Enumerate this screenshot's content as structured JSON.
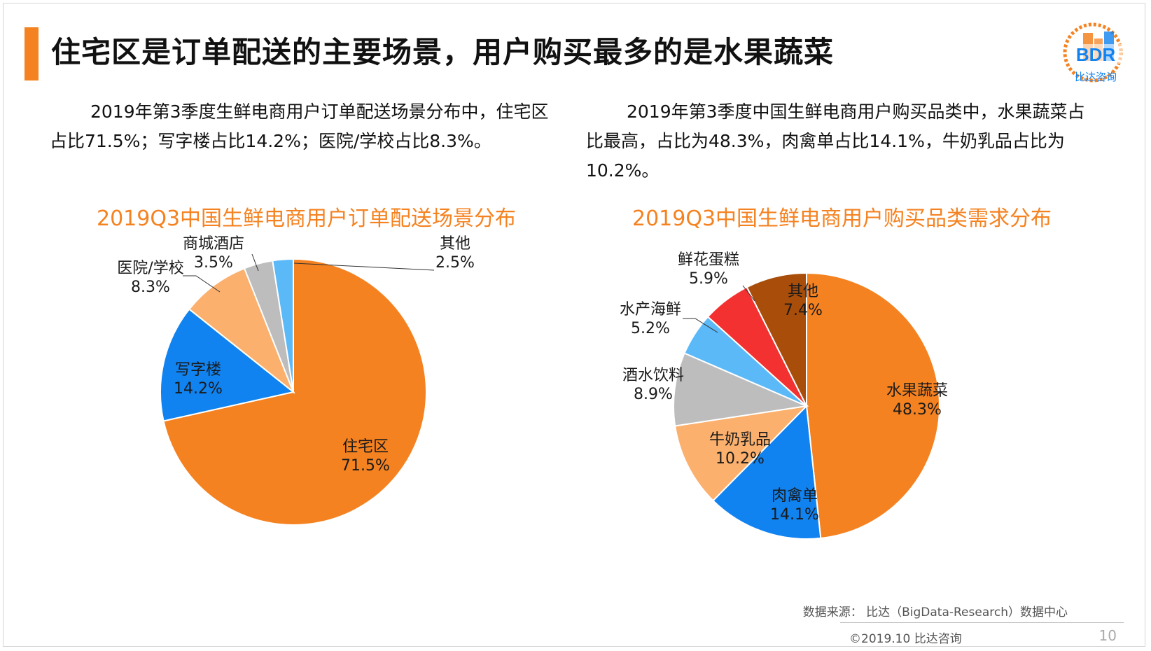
{
  "title": "住宅区是订单配送的主要场景，用户购买最多的是水果蔬菜",
  "logo": {
    "text": "BDR",
    "subtitle": "比达咨询"
  },
  "desc_left": "2019年第3季度生鲜电商用户订单配送场景分布中，住宅区占比71.5%；写字楼占比14.2%；医院/学校占比8.3%。",
  "desc_right": "2019年第3季度中国生鲜电商用户购买品类中，水果蔬菜占比最高，占比为48.3%，肉禽单占比14.1%，牛奶乳品占比为10.2%。",
  "chart_data": [
    {
      "type": "pie",
      "title": "2019Q3中国生鲜电商用户订单配送场景分布",
      "slices": [
        {
          "label": "住宅区",
          "value": 71.5,
          "display": "71.5%",
          "color": "#f58220"
        },
        {
          "label": "写字楼",
          "value": 14.2,
          "display": "14.2%",
          "color": "#1083f0"
        },
        {
          "label": "医院/学校",
          "value": 8.3,
          "display": "8.3%",
          "color": "#fbb06d"
        },
        {
          "label": "商城酒店",
          "value": 3.5,
          "display": "3.5%",
          "color": "#bdbdbd"
        },
        {
          "label": "其他",
          "value": 2.5,
          "display": "2.5%",
          "color": "#5bb9f7"
        }
      ]
    },
    {
      "type": "pie",
      "title": "2019Q3中国生鲜电商用户购买品类需求分布",
      "slices": [
        {
          "label": "水果蔬菜",
          "value": 48.3,
          "display": "48.3%",
          "color": "#f58220"
        },
        {
          "label": "肉禽单",
          "value": 14.1,
          "display": "14.1%",
          "color": "#1083f0"
        },
        {
          "label": "牛奶乳品",
          "value": 10.2,
          "display": "10.2%",
          "color": "#fbb06d"
        },
        {
          "label": "酒水饮料",
          "value": 8.9,
          "display": "8.9%",
          "color": "#bdbdbd"
        },
        {
          "label": "水产海鲜",
          "value": 5.2,
          "display": "5.2%",
          "color": "#5bb9f7"
        },
        {
          "label": "鲜花蛋糕",
          "value": 5.9,
          "display": "5.9%",
          "color": "#f43131"
        },
        {
          "label": "其他",
          "value": 7.4,
          "display": "7.4%",
          "color": "#a84d0a"
        }
      ]
    }
  ],
  "source": "数据来源： 比达（BigData-Research）数据中心",
  "copyright": "©2019.10 比达咨询",
  "page_number": "10"
}
